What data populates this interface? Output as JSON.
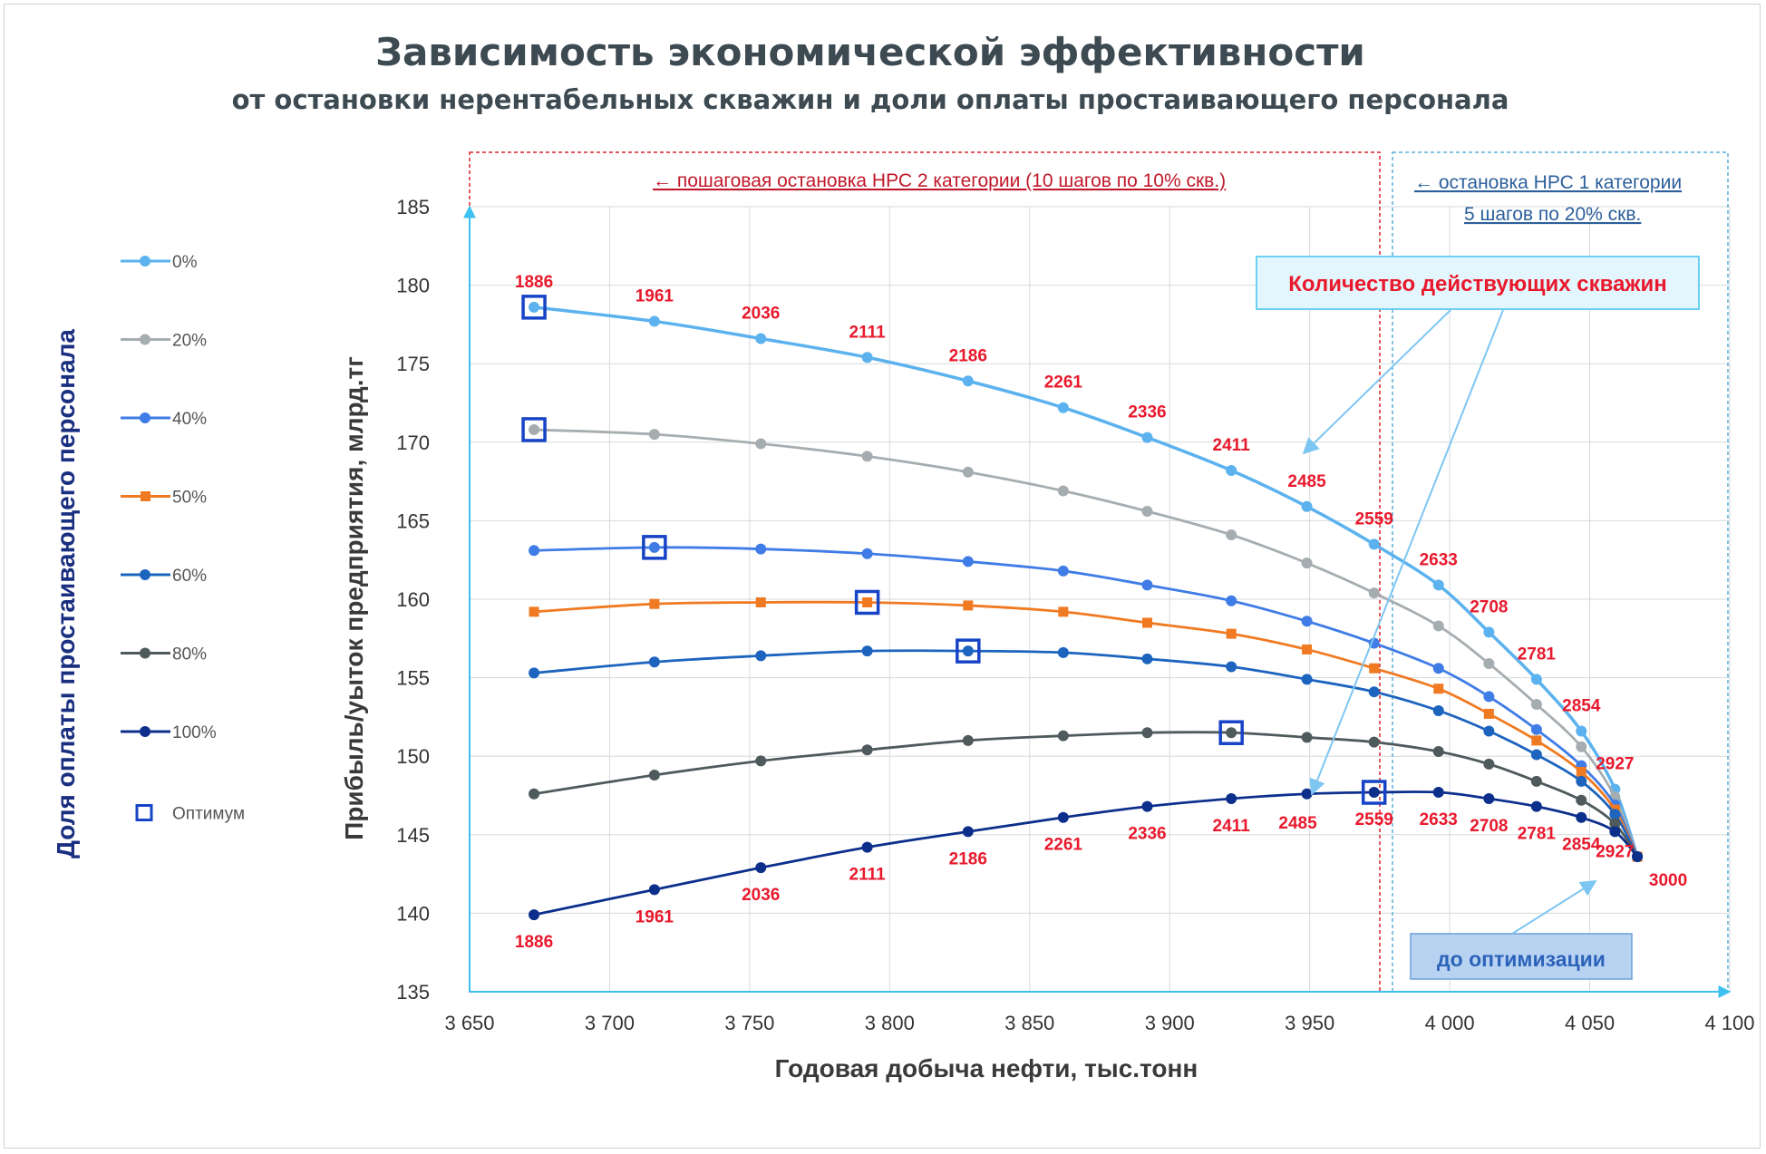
{
  "chart_data": {
    "type": "line",
    "title": "Зависимость экономической эффективности",
    "subtitle": "от остановки нерентабельных скважин и доли оплаты простаивающего персонала",
    "xlabel": "Годовая добыча нефти, тыс.тонн",
    "ylabel": "Прибыль/уыток предприятия,  млрд.тг",
    "legend_title": "Доля оплаты простаивающего персонала",
    "xlim": [
      3650,
      4100
    ],
    "ylim": [
      135,
      185
    ],
    "x_ticks": [
      3650,
      3700,
      3750,
      3800,
      3850,
      3900,
      3950,
      4000,
      4050,
      4100
    ],
    "x_tick_labels": [
      "3 650",
      "3 700",
      "3 750",
      "3 800",
      "3 850",
      "3 900",
      "3 950",
      "4 000",
      "4 050",
      "4 100"
    ],
    "y_ticks": [
      135,
      140,
      145,
      150,
      155,
      160,
      165,
      170,
      175,
      180,
      185
    ],
    "x": [
      3673,
      3716,
      3754,
      3792,
      3828,
      3862,
      3892,
      3922,
      3949,
      3973,
      3996,
      4014,
      4031,
      4047,
      4059,
      4067
    ],
    "series": [
      {
        "name": "0%",
        "color": "#5bb2ee",
        "marker": "circle",
        "values": [
          178.6,
          177.7,
          176.6,
          175.4,
          173.9,
          172.2,
          170.3,
          168.2,
          165.9,
          163.5,
          160.9,
          157.9,
          154.9,
          151.6,
          147.9,
          143.6
        ]
      },
      {
        "name": "20%",
        "color": "#a6adb0",
        "marker": "circle",
        "values": [
          170.8,
          170.5,
          169.9,
          169.1,
          168.1,
          166.9,
          165.6,
          164.1,
          162.3,
          160.4,
          158.3,
          155.9,
          153.3,
          150.6,
          147.4,
          143.6
        ]
      },
      {
        "name": "40%",
        "color": "#3f7ce6",
        "marker": "circle",
        "values": [
          163.1,
          163.3,
          163.2,
          162.9,
          162.4,
          161.8,
          160.9,
          159.9,
          158.6,
          157.2,
          155.6,
          153.8,
          151.7,
          149.4,
          146.9,
          143.6
        ]
      },
      {
        "name": "50%",
        "color": "#f07a22",
        "marker": "square",
        "values": [
          159.2,
          159.7,
          159.8,
          159.8,
          159.6,
          159.2,
          158.5,
          157.8,
          156.8,
          155.6,
          154.3,
          152.7,
          151.0,
          149.0,
          146.6,
          143.6
        ]
      },
      {
        "name": "60%",
        "color": "#1d64bf",
        "marker": "circle",
        "values": [
          155.3,
          156.0,
          156.4,
          156.7,
          156.7,
          156.6,
          156.2,
          155.7,
          154.9,
          154.1,
          152.9,
          151.6,
          150.1,
          148.4,
          146.3,
          143.6
        ]
      },
      {
        "name": "80%",
        "color": "#4e5a5c",
        "marker": "circle",
        "values": [
          147.6,
          148.8,
          149.7,
          150.4,
          151.0,
          151.3,
          151.5,
          151.5,
          151.2,
          150.9,
          150.3,
          149.5,
          148.4,
          147.2,
          145.7,
          143.6
        ]
      },
      {
        "name": "100%",
        "color": "#0d2f8c",
        "marker": "circle",
        "values": [
          139.9,
          141.5,
          142.9,
          144.2,
          145.2,
          146.1,
          146.8,
          147.3,
          147.6,
          147.7,
          147.7,
          147.3,
          146.8,
          146.1,
          145.2,
          143.6
        ]
      }
    ],
    "optimum": {
      "name": "Оптимум",
      "points": [
        {
          "series": "0%",
          "x": 3673,
          "y": 178.6
        },
        {
          "series": "20%",
          "x": 3673,
          "y": 170.8
        },
        {
          "series": "40%",
          "x": 3716,
          "y": 163.3
        },
        {
          "series": "50%",
          "x": 3792,
          "y": 159.8
        },
        {
          "series": "60%",
          "x": 3828,
          "y": 156.7
        },
        {
          "series": "80%",
          "x": 3922,
          "y": 151.5
        },
        {
          "series": "100%",
          "x": 3973,
          "y": 147.7
        }
      ]
    },
    "well_counts_top": [
      "1886",
      "1961",
      "2036",
      "2111",
      "2186",
      "2261",
      "2336",
      "2411",
      "2485",
      "2559",
      "2633",
      "2708",
      "2781",
      "2854",
      "2927"
    ],
    "well_counts_bottom": [
      "1886",
      "1961",
      "2036",
      "2111",
      "2186",
      "2261",
      "2336",
      "2411",
      "2485",
      "2559",
      "2633",
      "2708",
      "2781",
      "2854",
      "2927",
      "3000"
    ],
    "annotations": {
      "region_nrs2": "← пошаговая остановка НРС 2 категории (10 шагов по 10% скв.)",
      "region_nrs1_line1": "← остановка НРС 1 категории",
      "region_nrs1_line2": "5 шагов по 20% скв.",
      "wells_box": "Количество действующих скважин",
      "before_box": "до оптимизации"
    }
  }
}
